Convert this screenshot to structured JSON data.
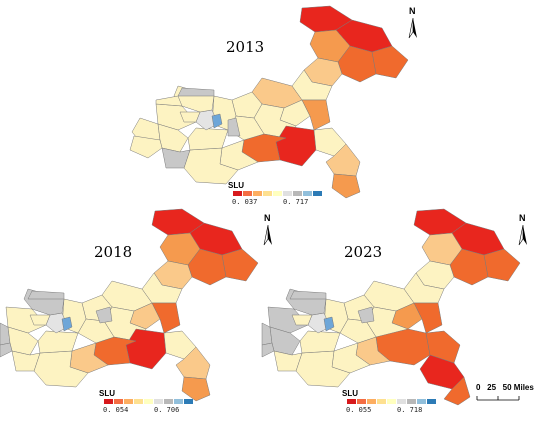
{
  "legend_title": "SLU",
  "legend_colors": [
    "#d7191c",
    "#f46d43",
    "#fdae61",
    "#fee090",
    "#ffffbf",
    "#e0e0e0",
    "#b8b8b8",
    "#91bfdb",
    "#2c7bb6"
  ],
  "north_label": "N",
  "panels": [
    {
      "year": "2013",
      "legend_min": "0. 037",
      "legend_max": "0. 717"
    },
    {
      "year": "2018",
      "legend_min": "0. 054",
      "legend_max": "0. 706"
    },
    {
      "year": "2023",
      "legend_min": "0. 055",
      "legend_max": "0. 718"
    }
  ],
  "scale_bar": {
    "label": "0   25   50 Miles"
  },
  "palette": {
    "dark_red": "#e8261e",
    "red_orange": "#f06a2d",
    "orange": "#f59a4e",
    "light_orange": "#fac98a",
    "pale_yellow": "#fdf3c2",
    "grey": "#c8c8c8",
    "blue": "#6ea6d8",
    "border": "#7a7a7a"
  }
}
